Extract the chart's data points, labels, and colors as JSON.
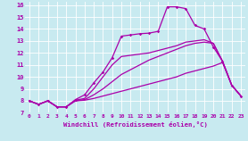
{
  "bg_color": "#c8eaf0",
  "line_color": "#aa00aa",
  "grid_color": "#ffffff",
  "xlim": [
    -0.5,
    23.5
  ],
  "ylim": [
    7,
    16.3
  ],
  "xticks": [
    0,
    1,
    2,
    3,
    4,
    5,
    6,
    7,
    8,
    9,
    10,
    11,
    12,
    13,
    14,
    15,
    16,
    17,
    18,
    19,
    20,
    21,
    22,
    23
  ],
  "yticks": [
    7,
    8,
    9,
    10,
    11,
    12,
    13,
    14,
    15,
    16
  ],
  "xlabel": "Windchill (Refroidissement éolien,°C)",
  "series": [
    {
      "name": "main_peaked_with_markers",
      "x": [
        0,
        1,
        2,
        3,
        4,
        5,
        6,
        7,
        8,
        9,
        10,
        11,
        12,
        13,
        14,
        15,
        16,
        17,
        18,
        19,
        20,
        21,
        22,
        23
      ],
      "y": [
        8.0,
        7.7,
        8.0,
        7.5,
        7.5,
        8.1,
        8.5,
        9.5,
        10.4,
        11.6,
        13.4,
        13.5,
        13.6,
        13.65,
        13.8,
        15.85,
        15.85,
        15.7,
        14.3,
        14.0,
        12.5,
        11.3,
        9.3,
        8.4
      ],
      "marker": true
    },
    {
      "name": "diagonal_upper",
      "x": [
        0,
        1,
        2,
        3,
        4,
        5,
        6,
        7,
        8,
        9,
        10,
        11,
        12,
        13,
        14,
        15,
        16,
        17,
        18,
        19,
        20,
        21,
        22,
        23
      ],
      "y": [
        8.0,
        7.7,
        8.0,
        7.5,
        7.5,
        8.0,
        8.1,
        8.5,
        9.0,
        9.6,
        10.2,
        10.6,
        11.0,
        11.4,
        11.7,
        12.0,
        12.3,
        12.6,
        12.8,
        12.9,
        12.8,
        11.3,
        9.3,
        8.4
      ],
      "marker": false
    },
    {
      "name": "diagonal_lower",
      "x": [
        0,
        1,
        2,
        3,
        4,
        5,
        6,
        7,
        8,
        9,
        10,
        11,
        12,
        13,
        14,
        15,
        16,
        17,
        18,
        19,
        20,
        21,
        22,
        23
      ],
      "y": [
        8.0,
        7.7,
        8.0,
        7.5,
        7.5,
        8.0,
        8.05,
        8.2,
        8.4,
        8.6,
        8.8,
        9.0,
        9.2,
        9.4,
        9.6,
        9.8,
        10.0,
        10.3,
        10.5,
        10.7,
        10.9,
        11.2,
        9.3,
        8.4
      ],
      "marker": false
    },
    {
      "name": "short_curved",
      "x": [
        0,
        1,
        2,
        3,
        4,
        5,
        6,
        7,
        8,
        9,
        10,
        11,
        12,
        13,
        14,
        15,
        16,
        17,
        18,
        19,
        20,
        21,
        22,
        23
      ],
      "y": [
        8.0,
        7.7,
        8.0,
        7.5,
        7.5,
        8.05,
        8.2,
        9.0,
        10.0,
        11.0,
        11.7,
        11.8,
        11.9,
        12.0,
        12.2,
        12.4,
        12.6,
        12.9,
        13.0,
        13.1,
        12.8,
        11.3,
        9.3,
        8.4
      ],
      "marker": false
    }
  ]
}
